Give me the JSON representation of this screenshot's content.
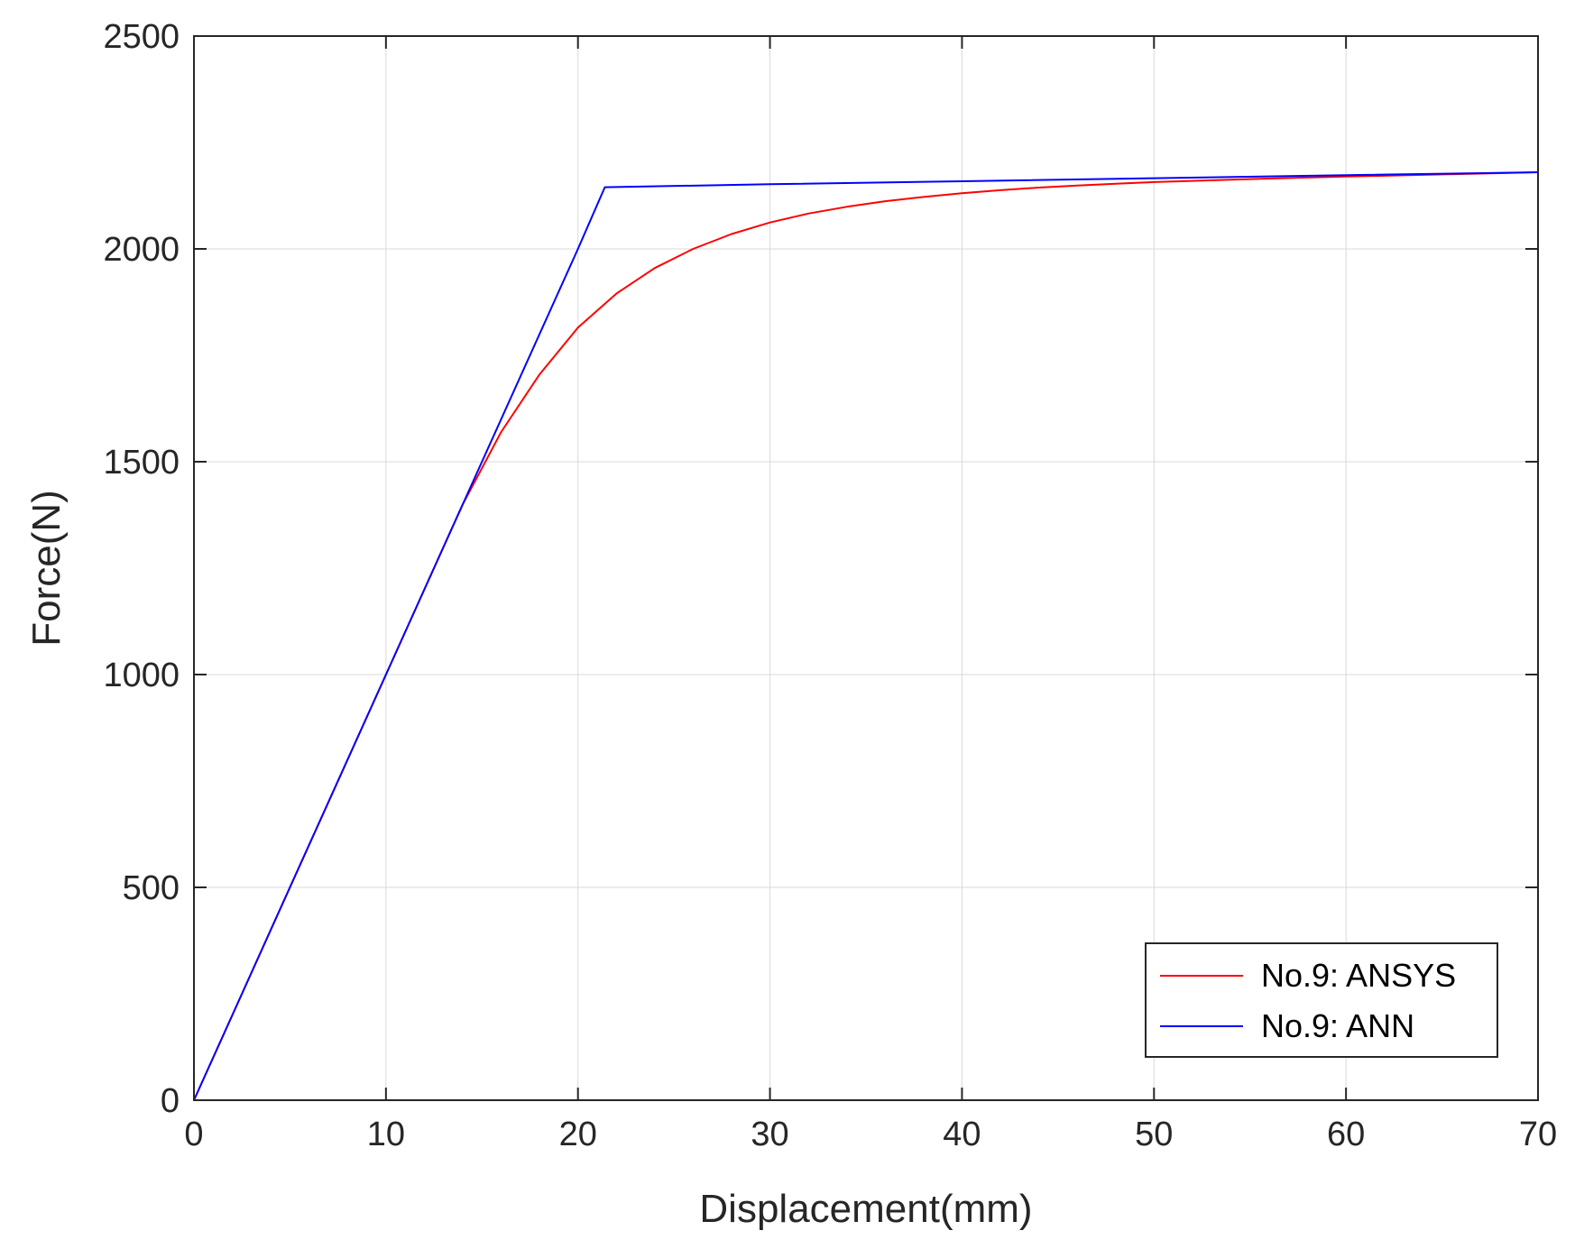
{
  "chart_data": {
    "type": "line",
    "title": "",
    "xlabel": "Displacement(mm)",
    "ylabel": "Force(N)",
    "xlim": [
      0,
      70
    ],
    "ylim": [
      0,
      2500
    ],
    "xticks": [
      0,
      10,
      20,
      30,
      40,
      50,
      60,
      70
    ],
    "yticks": [
      0,
      500,
      1000,
      1500,
      2000,
      2500
    ],
    "grid": true,
    "legend_position": "bottom-right",
    "series": [
      {
        "name": "No.9: ANSYS",
        "color": "#ff0000",
        "x": [
          0,
          2,
          4,
          6,
          8,
          10,
          12,
          14,
          16,
          18,
          20,
          22,
          24,
          26,
          28,
          30,
          32,
          34,
          36,
          38,
          40,
          42,
          44,
          46,
          48,
          50,
          55,
          60,
          65,
          70
        ],
        "y": [
          0,
          200,
          400,
          600,
          800,
          1000,
          1200,
          1400,
          1570,
          1705,
          1815,
          1895,
          1955,
          2000,
          2035,
          2062,
          2083,
          2099,
          2112,
          2122,
          2131,
          2138,
          2144,
          2149,
          2153,
          2157,
          2164,
          2170,
          2175,
          2180
        ]
      },
      {
        "name": "No.9: ANN",
        "color": "#0000ff",
        "x": [
          0,
          5,
          10,
          15,
          20,
          21.4,
          30,
          40,
          50,
          60,
          70
        ],
        "y": [
          0,
          500,
          1000,
          1500,
          2000,
          2145,
          2152,
          2159,
          2166,
          2173,
          2180
        ]
      }
    ]
  }
}
